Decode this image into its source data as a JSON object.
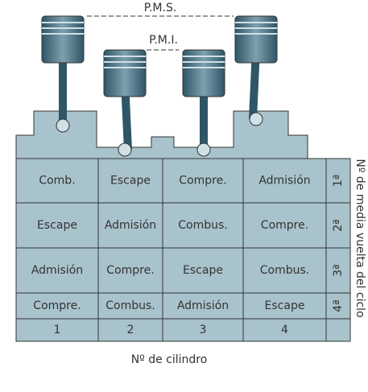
{
  "labels": {
    "pms": "P.M.S.",
    "pmi": "P.M.I."
  },
  "table": {
    "rows": [
      [
        "Comb.",
        "Escape",
        "Compre.",
        "Admisión"
      ],
      [
        "Escape",
        "Admisión",
        "Combus.",
        "Compre."
      ],
      [
        "Admisión",
        "Compre.",
        "Escape",
        "Combus."
      ],
      [
        "Compre.",
        "Combus.",
        "Admisión",
        "Escape"
      ]
    ],
    "half_turns": [
      "1ª",
      "2ª",
      "3ª",
      "4ª"
    ],
    "cylinders": [
      "1",
      "2",
      "3",
      "4"
    ]
  },
  "axis": {
    "right": "Nº de media vuelta del ciclo",
    "bottom": "Nº de cilindro"
  }
}
